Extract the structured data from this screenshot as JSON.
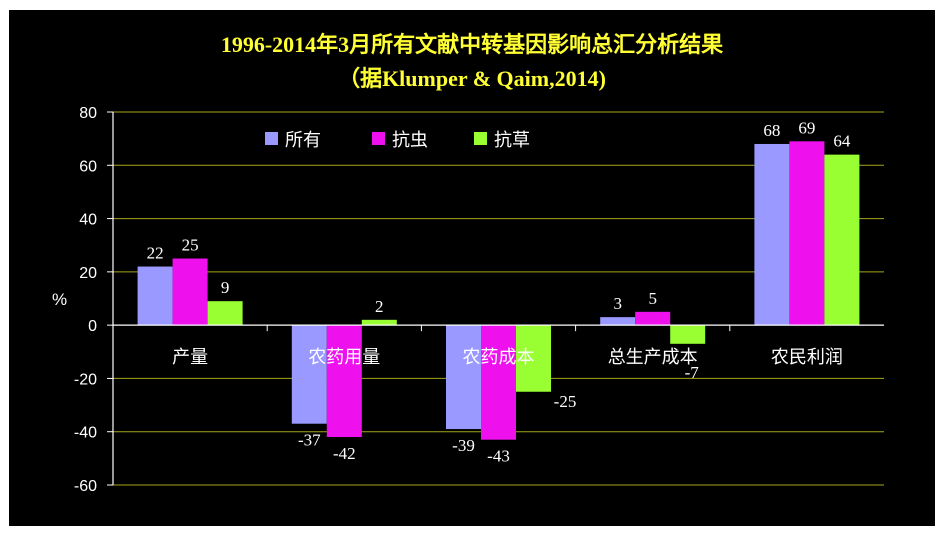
{
  "page": {
    "title": "1996-2014年3月所有文献中转基因影响总汇分析结果",
    "subtitle": "（据Klumper & Qaim,2014)"
  },
  "chart_data": {
    "type": "bar",
    "categories": [
      "产量",
      "农药用量",
      "农药成本",
      "总生产成本",
      "农民利润"
    ],
    "series": [
      {
        "name": "所有",
        "color": "#9999ff",
        "values": [
          22,
          -37,
          -39,
          3,
          68
        ],
        "labels": [
          "22",
          "-37",
          "-39",
          "3",
          "68"
        ]
      },
      {
        "name": "抗虫",
        "color": "#ee11ee",
        "values": [
          25,
          -42,
          -43,
          5,
          69
        ],
        "labels": [
          "25",
          "-42",
          "-43",
          "5",
          "69"
        ]
      },
      {
        "name": "抗草",
        "color": "#99ff33",
        "values": [
          9,
          2,
          -25,
          -7,
          64
        ],
        "labels": [
          "9",
          "2",
          "-25",
          "-7",
          "64"
        ]
      }
    ],
    "ylabel": "%",
    "ylim": [
      -60,
      80
    ],
    "yticks": [
      "80",
      "60",
      "40",
      "20",
      "0",
      "-20",
      "-40",
      "-60"
    ],
    "grid": true,
    "gridColor": "#a6a61a",
    "legend": "top-left inside plot",
    "titleColor": "#ffff33"
  }
}
